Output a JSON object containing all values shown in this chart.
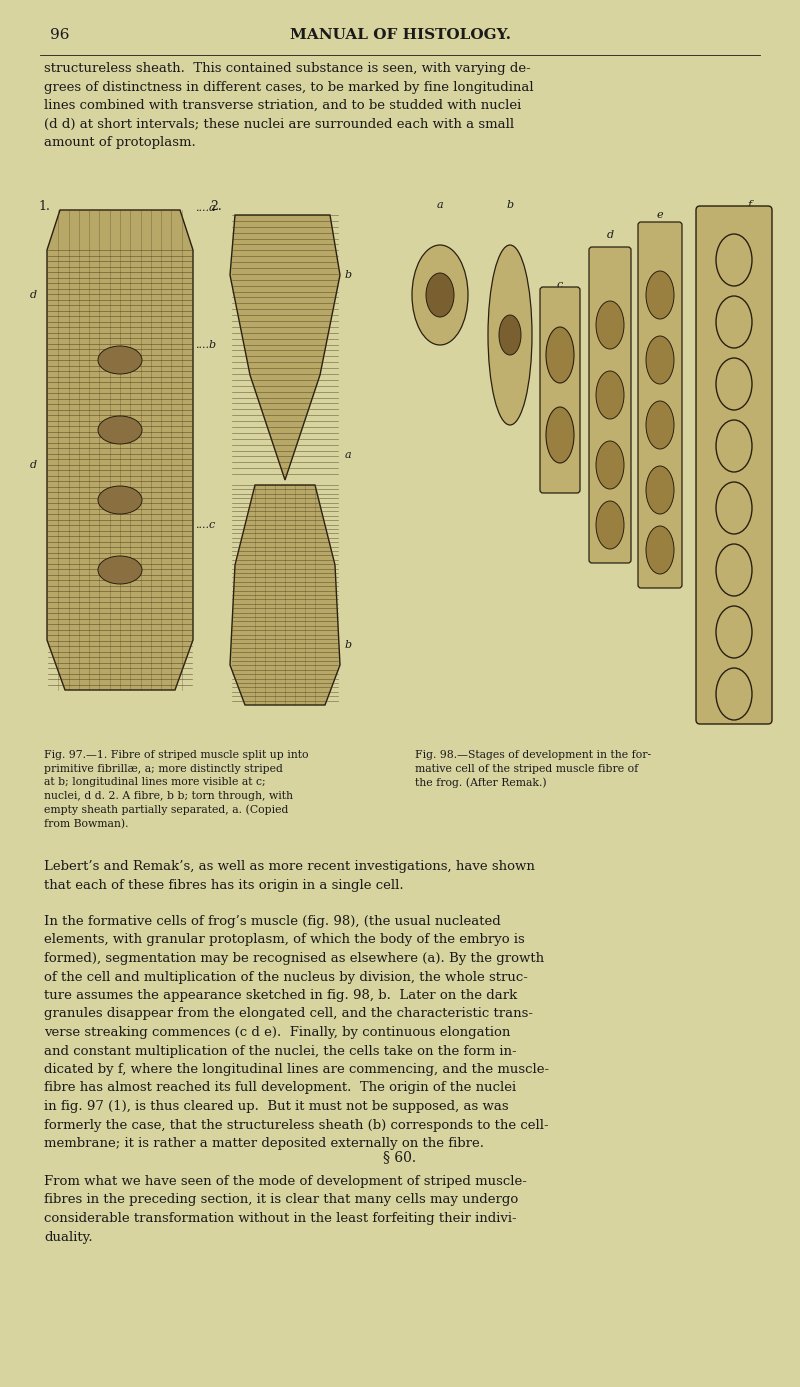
{
  "page_number": "96",
  "header": "MANUAL OF HISTOLOGY.",
  "background_color": "#d8d4a0",
  "text_color": "#1a1a1a",
  "fig97_caption": "Fig. 97.—1. Fibre of striped muscle split up into\nprimitive fibrillæ, a; more distinctly striped\nat b; longitudinal lines more visible at c;\nnuclei, d d. 2. A fibre, b b; torn through, with\nempty sheath partially separated, a. (Copied\nfrom Bowman).",
  "fig98_caption": "Fig. 98.—Stages of development in the for-\nmative cell of the striped muscle fibre of\nthe frog. (After Remak.)",
  "p1": "structureless sheath.  This contained substance is seen, with varying de-\ngrees of distinctness in different cases, to be marked by fine longitudinal\nlines combined with transverse striation, and to be studded with nuclei\n(d d) at short intervals; these nuclei are surrounded each with a small\namount of protoplasm.",
  "p2": "Lebert’s and Remak’s, as well as more recent investigations, have shown\nthat each of these fibres has its origin in a single cell.",
  "p3": "In the formative cells of frog’s muscle (fig. 98), (the usual nucleated\nelements, with granular protoplasm, of which the body of the embryo is\nformed), segmentation may be recognised as elsewhere (a). By the growth\nof the cell and multiplication of the nucleus by division, the whole struc-\nture assumes the appearance sketched in fig. 98, b.  Later on the dark\ngranules disappear from the elongated cell, and the characteristic trans-\nverse streaking commences (c d e).  Finally, by continuous elongation\nand constant multiplication of the nuclei, the cells take on the form in-\ndicated by f, where the longitudinal lines are commencing, and the muscle-\nfibre has almost reached its full development.  The origin of the nuclei\nin fig. 97 (1), is thus cleared up.  But it must not be supposed, as was\nformerly the case, that the structureless sheath (b) corresponds to the cell-\nmembrane; it is rather a matter deposited externally on the fibre.",
  "section": "§ 60.",
  "p4": "From what we have seen of the mode of development of striped muscle-\nfibres in the preceding section, it is clear that many cells may undergo\nconsiderable transformation without in the least forfeiting their indivi-\nduality.",
  "image_bg": "#c8b870"
}
